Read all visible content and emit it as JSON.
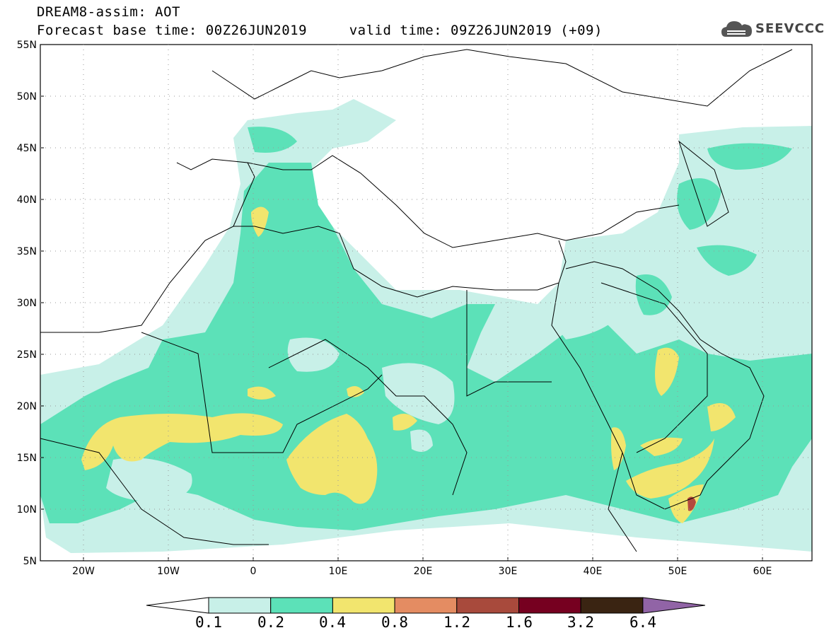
{
  "header": {
    "line1": "DREAM8-assim: AOT",
    "line2": "Forecast base time: 00Z26JUN2019     valid time: 09Z26JUN2019 (+09)"
  },
  "logo": {
    "text": "SEEVCCC",
    "icon": "cloud-icon"
  },
  "map": {
    "lat_labels": [
      "55N",
      "50N",
      "45N",
      "40N",
      "35N",
      "30N",
      "25N",
      "20N",
      "15N",
      "10N",
      "5N"
    ],
    "lon_labels": [
      "20W",
      "10W",
      "0",
      "10E",
      "20E",
      "30E",
      "40E",
      "50E",
      "60E"
    ]
  },
  "colorbar": {
    "labels": [
      "0.1",
      "0.2",
      "0.4",
      "0.8",
      "1.2",
      "1.6",
      "3.2",
      "6.4"
    ],
    "colors": [
      "#ffffff",
      "#c8f0e8",
      "#5ce1b8",
      "#f2e56e",
      "#e48c62",
      "#a84a3c",
      "#760020",
      "#3a2412",
      "#9164a6"
    ]
  },
  "colors": {
    "pale": "#c8f0e8",
    "green": "#5ce1b8",
    "yellow": "#f2e56e",
    "red": "#b34a3e"
  }
}
